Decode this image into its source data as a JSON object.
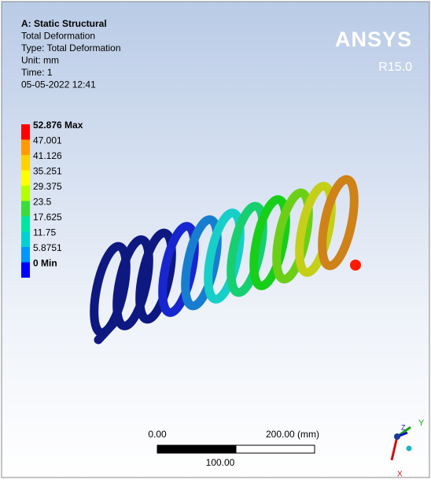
{
  "header": {
    "lines": [
      "A: Static Structural",
      "Total Deformation",
      "Type: Total Deformation",
      "Unit: mm",
      "Time: 1",
      "05-05-2022 12:41"
    ]
  },
  "legend": {
    "items": [
      {
        "label": "52.876 Max",
        "color": "#ff0000"
      },
      {
        "label": "47.001",
        "color": "#ff9b00"
      },
      {
        "label": "41.126",
        "color": "#ffd200"
      },
      {
        "label": "35.251",
        "color": "#ffff00"
      },
      {
        "label": "29.375",
        "color": "#b4ff00"
      },
      {
        "label": "23.5",
        "color": "#3cdc3c"
      },
      {
        "label": "17.625",
        "color": "#00e6a0"
      },
      {
        "label": "11.75",
        "color": "#00d2d2"
      },
      {
        "label": "5.8751",
        "color": "#0096ff"
      },
      {
        "label": "0 Min",
        "color": "#0000ff"
      }
    ]
  },
  "brand": {
    "name": "ANSYS",
    "version": "R15.0"
  },
  "scale_bar": {
    "start": "0.00",
    "end": "200.00 (mm)",
    "middle": "100.00"
  },
  "triad": {
    "y": "Y",
    "z": "Z",
    "x": "X"
  }
}
